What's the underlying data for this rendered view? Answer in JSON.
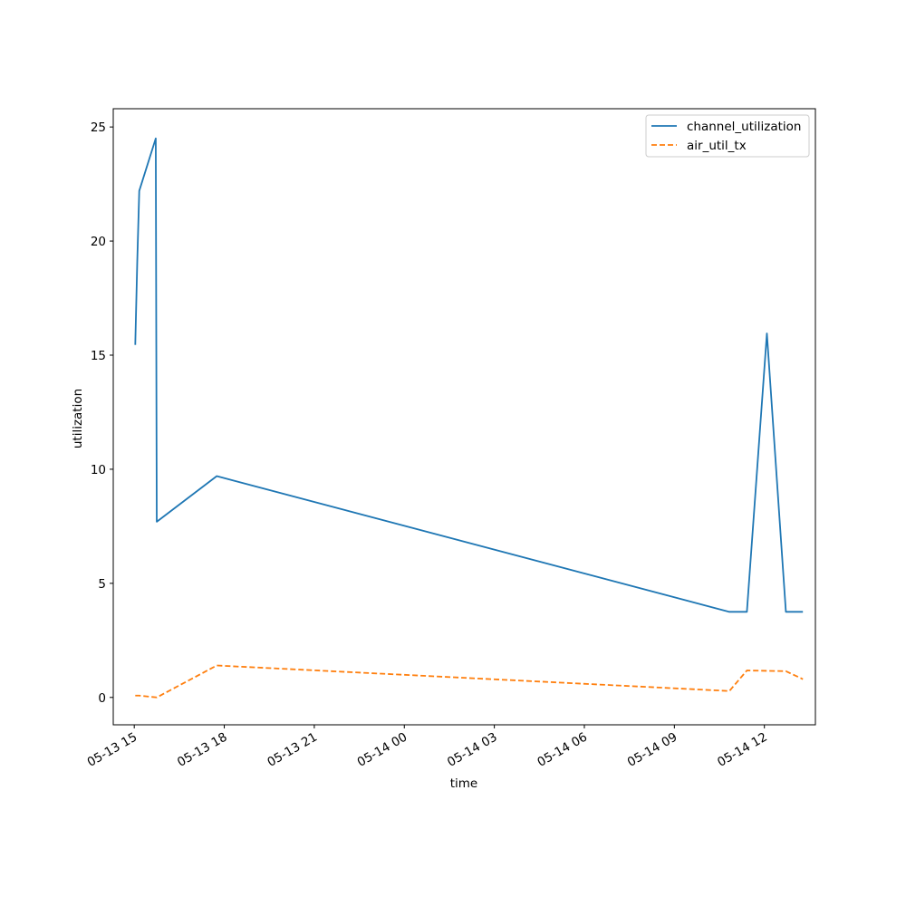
{
  "chart_data": {
    "type": "line",
    "title": "",
    "xlabel": "time",
    "ylabel": "utilization",
    "x_type": "datetime",
    "xlim": [
      "2024-05-13 14:18",
      "2024-05-14 13:42"
    ],
    "ylim": [
      -1.2,
      25.8
    ],
    "x_ticks": [
      "2024-05-13 15:00",
      "2024-05-13 18:00",
      "2024-05-13 21:00",
      "2024-05-14 00:00",
      "2024-05-14 03:00",
      "2024-05-14 06:00",
      "2024-05-14 09:00",
      "2024-05-14 12:00"
    ],
    "x_tick_labels": [
      "05-13 15",
      "05-13 18",
      "05-13 21",
      "05-14 00",
      "05-14 03",
      "05-14 06",
      "05-14 09",
      "05-14 12"
    ],
    "y_ticks": [
      0,
      5,
      10,
      15,
      20,
      25
    ],
    "y_tick_labels": [
      "0",
      "5",
      "10",
      "15",
      "20",
      "25"
    ],
    "grid": false,
    "legend_position": "top-right",
    "series": [
      {
        "name": "channel_utilization",
        "color": "#1f77b4",
        "line_style": "solid",
        "points": [
          [
            "2024-05-13 15:02",
            15.45
          ],
          [
            "2024-05-13 15:06",
            19.1
          ],
          [
            "2024-05-13 15:10",
            22.2
          ],
          [
            "2024-05-13 15:43",
            24.5
          ],
          [
            "2024-05-13 15:45",
            7.7
          ],
          [
            "2024-05-13 17:45",
            9.7
          ],
          [
            "2024-05-14 10:50",
            3.75
          ],
          [
            "2024-05-14 11:25",
            3.75
          ],
          [
            "2024-05-14 12:05",
            15.95
          ],
          [
            "2024-05-14 12:43",
            3.75
          ],
          [
            "2024-05-14 13:17",
            3.75
          ]
        ]
      },
      {
        "name": "air_util_tx",
        "color": "#ff7f0e",
        "line_style": "dashed",
        "points": [
          [
            "2024-05-13 15:02",
            0.08
          ],
          [
            "2024-05-13 15:10",
            0.08
          ],
          [
            "2024-05-13 15:45",
            0.0
          ],
          [
            "2024-05-13 17:45",
            1.4
          ],
          [
            "2024-05-14 10:50",
            0.28
          ],
          [
            "2024-05-14 11:25",
            1.18
          ],
          [
            "2024-05-14 12:43",
            1.15
          ],
          [
            "2024-05-14 13:17",
            0.8
          ]
        ]
      }
    ]
  }
}
